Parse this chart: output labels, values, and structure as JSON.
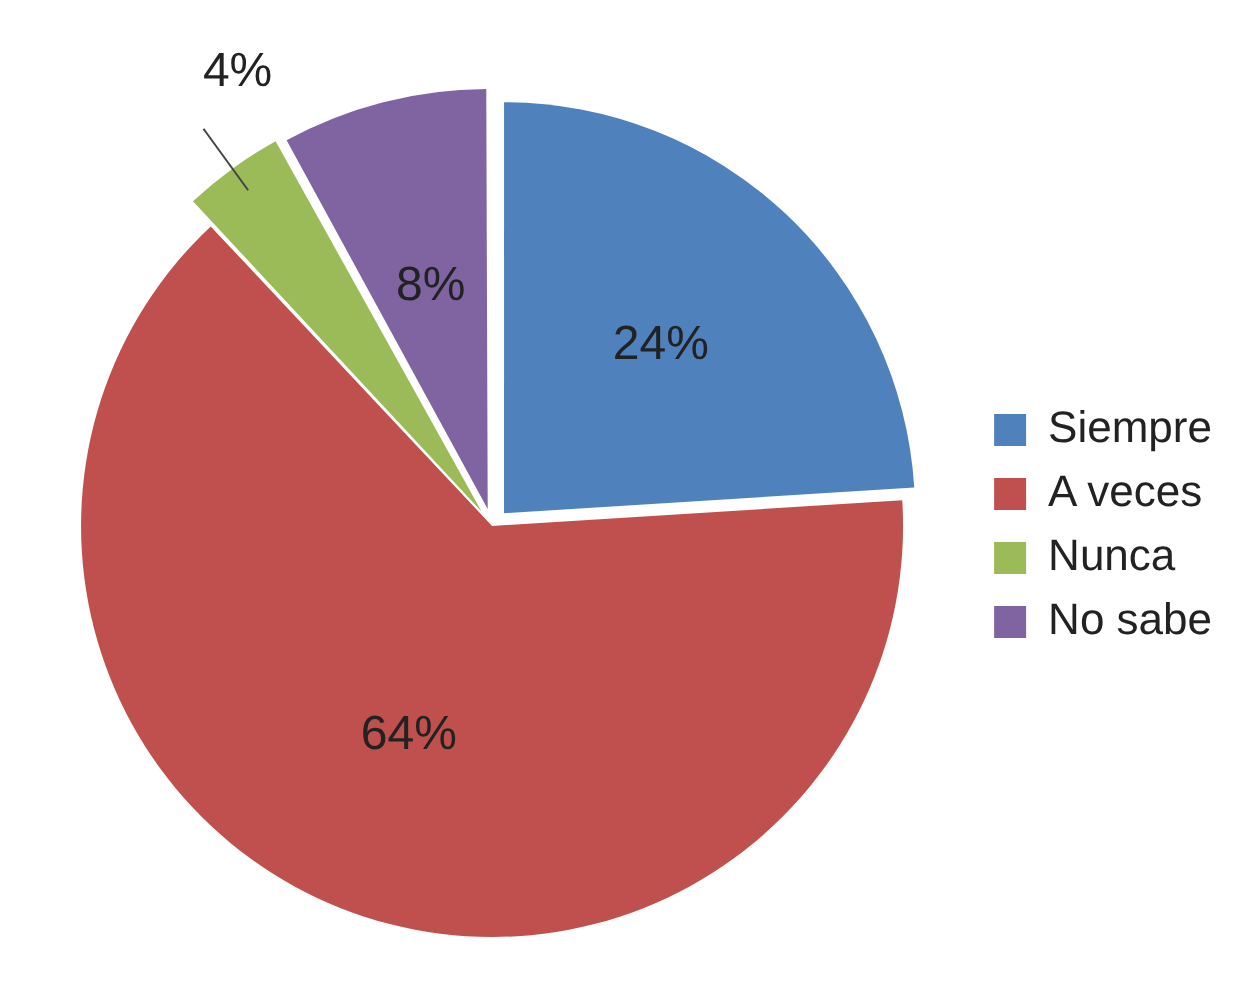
{
  "chart_data": {
    "type": "pie",
    "categories": [
      "Siempre",
      "A veces",
      "Nunca",
      "No sabe"
    ],
    "values": [
      24,
      64,
      4,
      8
    ],
    "value_labels": [
      "24%",
      "64%",
      "4%",
      "8%"
    ],
    "colors": [
      "#4f81bd",
      "#c0504d",
      "#9bbb59",
      "#8064a2"
    ],
    "legend": "right"
  }
}
